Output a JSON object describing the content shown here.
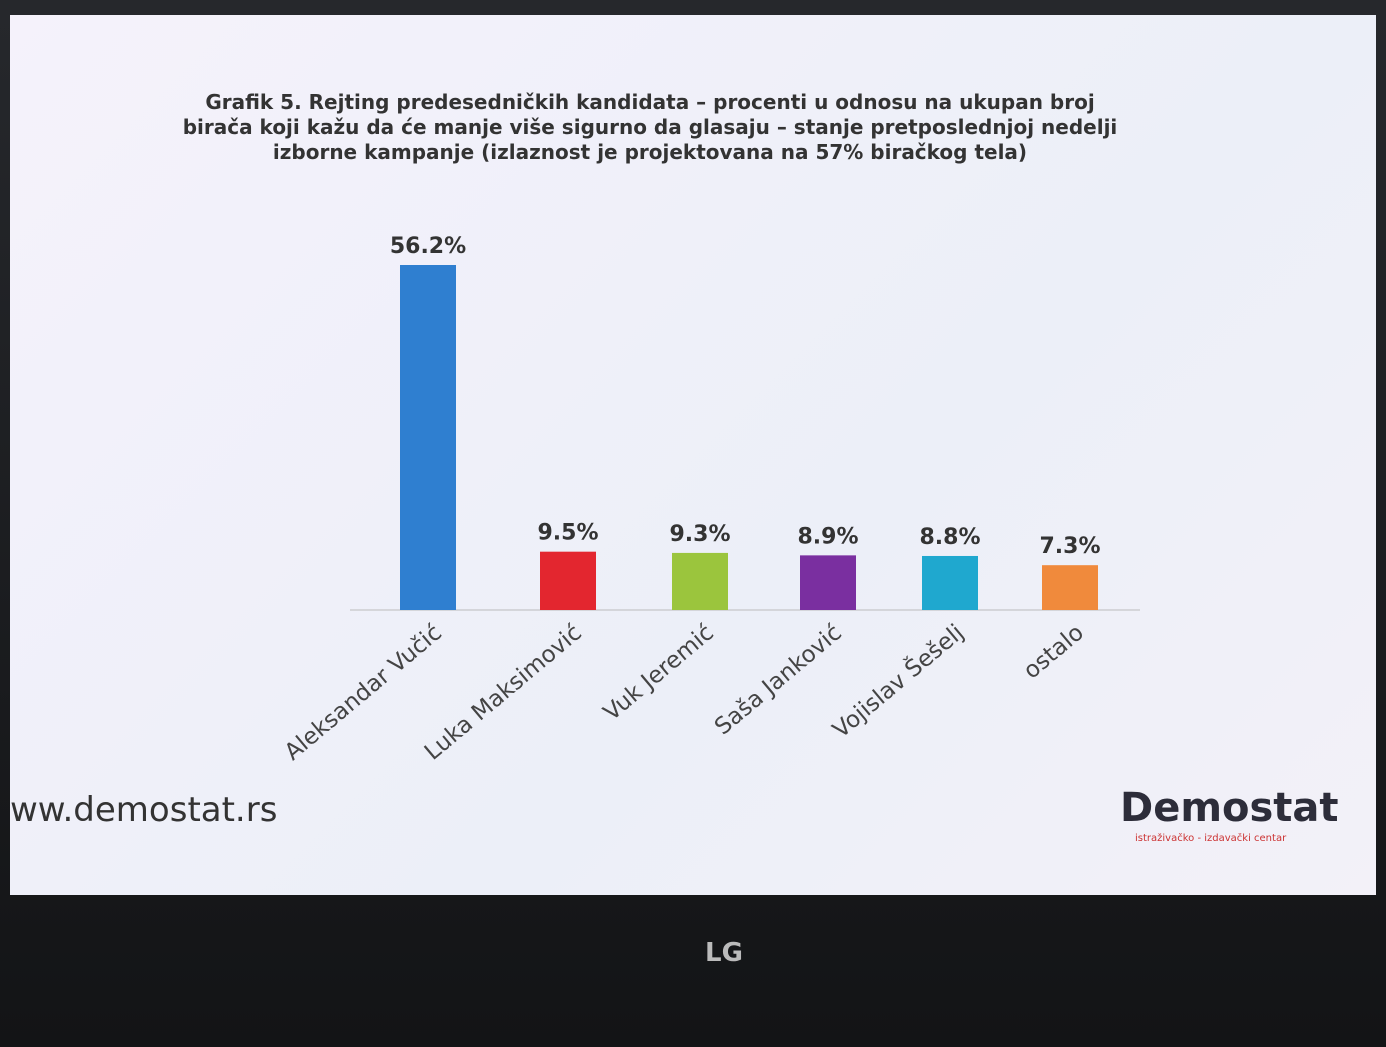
{
  "chart_data": {
    "type": "bar",
    "title": "Grafik 5. Rejting predesedničkih kandidata – procenti u odnosu na ukupan broj birača koji kažu da će manje više sigurno da glasaju – stanje pretposlednjoj nedelji izborne kampanje (izlaznost je projektovana na 57% biračkog tela)",
    "categories": [
      "Aleksandar Vučić",
      "Luka Maksimović",
      "Vuk Jeremić",
      "Saša Janković",
      "Vojislav Šešelj",
      "ostalo"
    ],
    "values": [
      56.2,
      9.5,
      9.3,
      8.9,
      8.8,
      7.3
    ],
    "value_labels": [
      "56.2%",
      "9.5%",
      "9.3%",
      "8.9%",
      "8.8%",
      "7.3%"
    ],
    "colors": [
      "#2f7fd0",
      "#e3262f",
      "#9bc53d",
      "#7a2fa0",
      "#1fa8cf",
      "#f08a3c"
    ]
  },
  "footer": {
    "website": "ww.demostat.rs",
    "logo": "Demostat",
    "logo_subtitle": "istraživačko - izdavački centar"
  },
  "tv": {
    "brand": "LG"
  }
}
